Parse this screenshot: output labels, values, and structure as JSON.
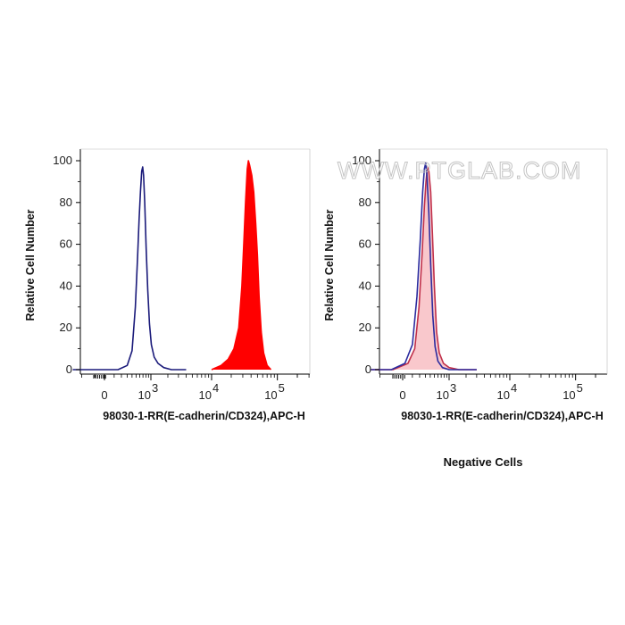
{
  "chart_data": [
    {
      "type": "area",
      "title": "",
      "xlabel": "98030-1-RR(E-cadherin/CD324),APC-H",
      "ylabel": "Relative Cell Number",
      "x_scale": "biexponential",
      "xlim": [
        -1000,
        250000
      ],
      "ylim": [
        0,
        105
      ],
      "x_tick_labels": [
        {
          "value": 0,
          "base": "0",
          "exp": ""
        },
        {
          "value": 1000,
          "base": "10",
          "exp": "3"
        },
        {
          "value": 10000,
          "base": "10",
          "exp": "4"
        },
        {
          "value": 100000,
          "base": "10",
          "exp": "5"
        }
      ],
      "y_ticks": [
        0,
        20,
        40,
        60,
        80,
        100
      ],
      "grid": false,
      "series": [
        {
          "color": "#1a1a7a",
          "fill": "none",
          "points": [
            [
              -500,
              0
            ],
            [
              150,
              0
            ],
            [
              300,
              2
            ],
            [
              400,
              9
            ],
            [
              480,
              30
            ],
            [
              540,
              55
            ],
            [
              580,
              72
            ],
            [
              620,
              85
            ],
            [
              660,
              95
            ],
            [
              690,
              97
            ],
            [
              720,
              93
            ],
            [
              760,
              80
            ],
            [
              810,
              58
            ],
            [
              870,
              38
            ],
            [
              940,
              22
            ],
            [
              1020,
              12
            ],
            [
              1150,
              6
            ],
            [
              1350,
              3
            ],
            [
              1700,
              1
            ],
            [
              2300,
              0
            ],
            [
              4000,
              0
            ]
          ]
        },
        {
          "color": "#ff0000",
          "fill": "#ff0000",
          "points": [
            [
              10000,
              0
            ],
            [
              14000,
              2
            ],
            [
              18000,
              5
            ],
            [
              22000,
              10
            ],
            [
              26000,
              20
            ],
            [
              29000,
              40
            ],
            [
              31000,
              60
            ],
            [
              33000,
              80
            ],
            [
              35000,
              96
            ],
            [
              36500,
              100
            ],
            [
              38000,
              98
            ],
            [
              41000,
              93
            ],
            [
              44000,
              85
            ],
            [
              47000,
              70
            ],
            [
              50000,
              55
            ],
            [
              53000,
              35
            ],
            [
              57000,
              18
            ],
            [
              62000,
              8
            ],
            [
              70000,
              2
            ],
            [
              80000,
              0
            ]
          ]
        }
      ]
    },
    {
      "type": "area",
      "title": "",
      "xlabel": "98030-1-RR(E-cadherin/CD324),APC-H",
      "ylabel": "Relative Cell Number",
      "x_scale": "biexponential",
      "xlim": [
        -1000,
        250000
      ],
      "ylim": [
        0,
        105
      ],
      "x_tick_labels": [
        {
          "value": 0,
          "base": "0",
          "exp": ""
        },
        {
          "value": 1000,
          "base": "10",
          "exp": "3"
        },
        {
          "value": 10000,
          "base": "10",
          "exp": "4"
        },
        {
          "value": 100000,
          "base": "10",
          "exp": "5"
        }
      ],
      "y_ticks": [
        0,
        20,
        40,
        60,
        80,
        100
      ],
      "grid": false,
      "series": [
        {
          "color": "#c0304a",
          "fill": "#f9c8cc",
          "points": [
            [
              -500,
              0
            ],
            [
              -100,
              0
            ],
            [
              50,
              3
            ],
            [
              130,
              10
            ],
            [
              190,
              30
            ],
            [
              240,
              55
            ],
            [
              280,
              78
            ],
            [
              310,
              90
            ],
            [
              340,
              97
            ],
            [
              370,
              95
            ],
            [
              410,
              85
            ],
            [
              450,
              65
            ],
            [
              500,
              40
            ],
            [
              560,
              18
            ],
            [
              640,
              8
            ],
            [
              780,
              3
            ],
            [
              1000,
              1
            ],
            [
              1500,
              0
            ],
            [
              3000,
              0
            ]
          ]
        },
        {
          "color": "#2b2b9e",
          "fill": "none",
          "points": [
            [
              -500,
              0
            ],
            [
              -120,
              0
            ],
            [
              20,
              3
            ],
            [
              100,
              12
            ],
            [
              160,
              35
            ],
            [
              210,
              62
            ],
            [
              250,
              85
            ],
            [
              280,
              96
            ],
            [
              305,
              99
            ],
            [
              330,
              93
            ],
            [
              370,
              75
            ],
            [
              410,
              50
            ],
            [
              460,
              26
            ],
            [
              520,
              11
            ],
            [
              600,
              4
            ],
            [
              740,
              1
            ],
            [
              1000,
              0
            ],
            [
              3000,
              0
            ]
          ]
        }
      ]
    }
  ],
  "watermark": "WWW.PTGLAB.COM",
  "caption": "Negative Cells",
  "colors": {
    "axis": "#000000",
    "watermark": "#c4c4c4"
  }
}
